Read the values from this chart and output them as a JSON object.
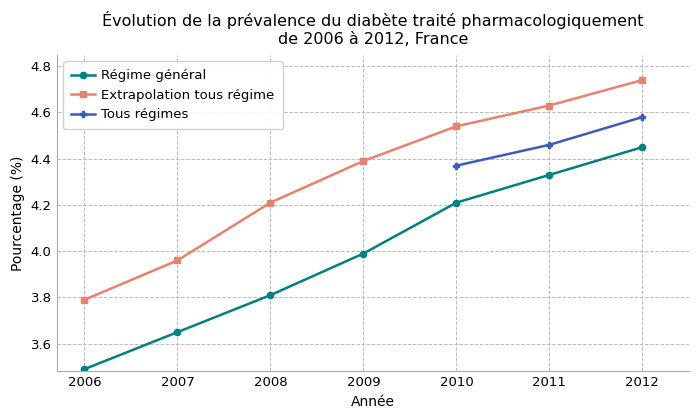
{
  "title": "Évolution de la prévalence du diabète traité pharmacologiquement\nde 2006 à 2012, France",
  "xlabel": "Année",
  "ylabel": "Pourcentage (%)",
  "years": [
    2006,
    2007,
    2008,
    2009,
    2010,
    2011,
    2012
  ],
  "regime_general": [
    3.49,
    3.65,
    3.81,
    3.99,
    4.21,
    4.33,
    4.45
  ],
  "extrapolation": [
    3.79,
    3.96,
    4.21,
    4.39,
    4.54,
    4.63,
    4.74
  ],
  "tous_regimes": [
    null,
    null,
    null,
    null,
    4.37,
    4.46,
    4.58
  ],
  "color_regime_general": "#008080",
  "color_extrapolation": "#E8826C",
  "color_tous_regimes": "#3B5BBD",
  "ylim_min": 3.48,
  "ylim_max": 4.85,
  "xlim_min": 2005.7,
  "xlim_max": 2012.5,
  "legend_labels": [
    "Régime général",
    "Extrapolation tous régime",
    "Tous régimes"
  ],
  "background_color": "#FFFFFF",
  "grid_color": "#BBBBBB",
  "title_fontsize": 11.5,
  "label_fontsize": 10,
  "tick_fontsize": 9.5,
  "legend_fontsize": 9.5
}
